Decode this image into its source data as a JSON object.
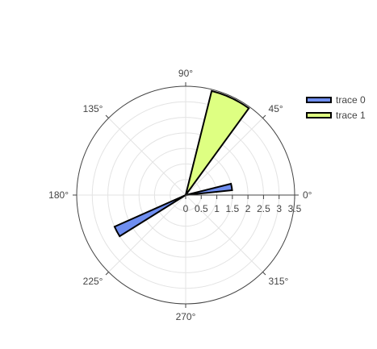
{
  "chart_data": {
    "type": "barpolar",
    "radial_axis": {
      "range": [
        0,
        3.5
      ],
      "ticks": [
        0,
        0.5,
        1,
        1.5,
        2,
        2.5,
        3,
        3.5
      ],
      "tick_labels": [
        "0",
        "0.5",
        "1",
        "1.5",
        "2",
        "2.5",
        "3",
        "3.5"
      ]
    },
    "angular_axis": {
      "ticks": [
        0,
        45,
        90,
        135,
        180,
        225,
        270,
        315
      ],
      "tick_labels": [
        "0°",
        "45°",
        "90°",
        "135°",
        "180°",
        "225°",
        "270°",
        "315°"
      ],
      "direction": "counterclockwise",
      "rotation": 0
    },
    "grid": true,
    "legend_position": "top-right",
    "series": [
      {
        "name": "trace 0",
        "color": "#6f8ef0",
        "outline": "#000000",
        "bars": [
          {
            "r": 1.5,
            "theta_start": 6,
            "theta_end": 14
          },
          {
            "r": 2.5,
            "theta_start": 204,
            "theta_end": 212
          }
        ]
      },
      {
        "name": "trace 1",
        "color": "#deff82",
        "outline": "#000000",
        "bars": [
          {
            "r": 3.45,
            "theta_start": 54,
            "theta_end": 76
          }
        ]
      }
    ]
  }
}
